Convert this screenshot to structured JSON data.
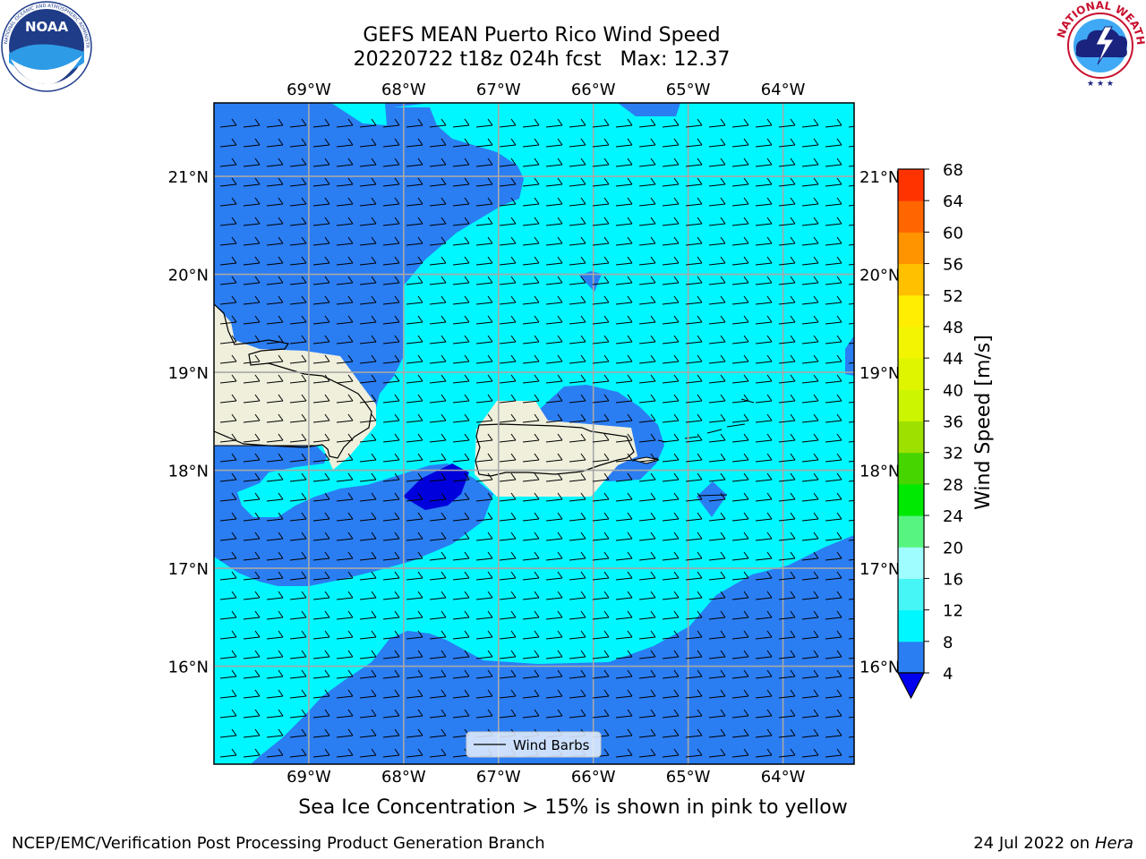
{
  "header": {
    "title_line1": "GEFS MEAN Puerto Rico Wind Speed",
    "title_line2": "20220722 t18z 024h fcst   Max: 12.37"
  },
  "logos": {
    "left": {
      "name": "noaa-logo",
      "text": "NOAA",
      "ring_text": "NATIONAL OCEANIC AND ATMOSPHERIC ADMINISTRATION · U.S. DEPARTMENT OF COMMERCE"
    },
    "right": {
      "name": "nws-logo",
      "ring_text": "NATIONAL WEATHER SERVICE"
    }
  },
  "map": {
    "lon_labels": [
      "69°W",
      "68°W",
      "67°W",
      "66°W",
      "65°W",
      "64°W"
    ],
    "lon_values": [
      -69,
      -68,
      -67,
      -66,
      -65,
      -64
    ],
    "lat_labels": [
      "21°N",
      "20°N",
      "19°N",
      "18°N",
      "17°N",
      "16°N"
    ],
    "lat_values": [
      21,
      20,
      19,
      18,
      17,
      16
    ],
    "lon_range": [
      -70.0,
      -63.25
    ],
    "lat_range": [
      15.0,
      21.75
    ],
    "legend_label": "Wind Barbs"
  },
  "colorbar": {
    "label": "Wind Speed [m/s]",
    "tick_labels": [
      "68",
      "64",
      "60",
      "56",
      "52",
      "48",
      "44",
      "40",
      "36",
      "32",
      "28",
      "24",
      "20",
      "16",
      "12",
      "8",
      "4"
    ],
    "levels": [
      4,
      8,
      12,
      16,
      20,
      24,
      28,
      32,
      36,
      40,
      44,
      48,
      52,
      56,
      60,
      64,
      68
    ],
    "colors": [
      "#2b7df2",
      "#00f7ff",
      "#46f5f5",
      "#9ffcff",
      "#58f480",
      "#00e900",
      "#47d500",
      "#9ee000",
      "#cbf500",
      "#dff500",
      "#f3f500",
      "#ffee00",
      "#ffc000",
      "#ff9300",
      "#ff6600",
      "#ff3300"
    ],
    "under_color": "#0000ee"
  },
  "colors": {
    "land": "#efefdc",
    "speed_4_8": "#2b7df2",
    "speed_8_12": "#00f7ff",
    "speed_below_4": "#0000dd"
  },
  "caption": "Sea Ice Concentration > 15% is shown in pink to yellow",
  "footer": {
    "left": "NCEP/EMC/Verification Post Processing Product Generation Branch",
    "right_prefix": "24 Jul 2022 on ",
    "right_italic": "Hera"
  }
}
